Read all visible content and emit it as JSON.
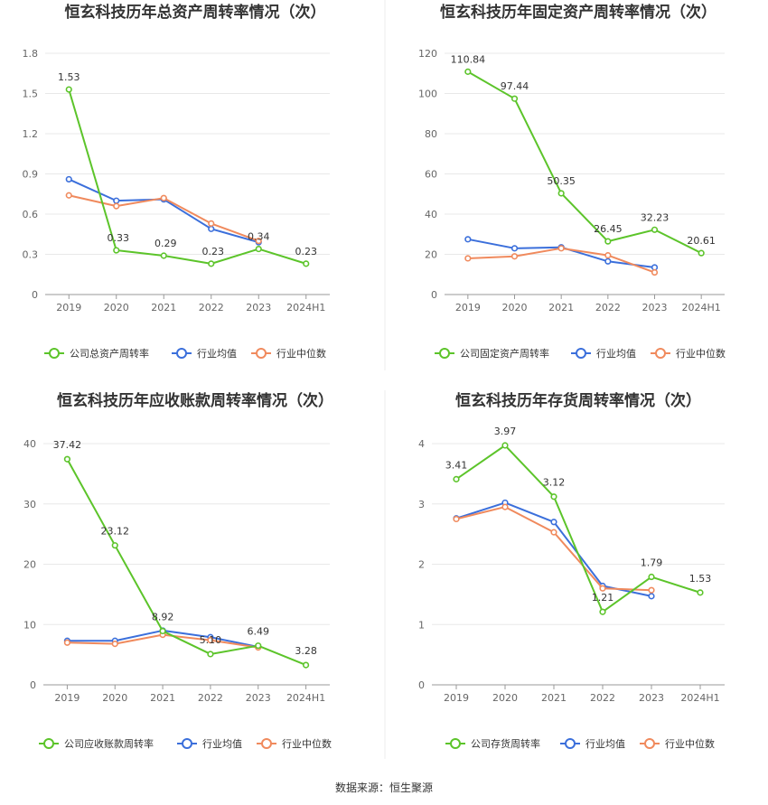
{
  "source_text": "数据来源：恒生聚源",
  "colors": {
    "company": "#5cc42a",
    "avg": "#3b6fdb",
    "median": "#f08a5d",
    "grid": "#e8e8e8",
    "axis": "#999999",
    "divider": "#eeeeee"
  },
  "chart_data": [
    {
      "type": "line",
      "title": "恒玄科技历年总资产周转率情况（次）",
      "categories": [
        "2019",
        "2020",
        "2021",
        "2022",
        "2023",
        "2024H1"
      ],
      "ylim": [
        0,
        1.8
      ],
      "yticks": [
        "0",
        "0.3",
        "0.6",
        "0.9",
        "1.2",
        "1.5",
        "1.8"
      ],
      "series": [
        {
          "name": "公司总资产周转率",
          "values": [
            1.53,
            0.33,
            0.29,
            0.23,
            0.34,
            0.23
          ],
          "labels": [
            "1.53",
            "0.33",
            "0.29",
            "0.23",
            "0.34",
            "0.23"
          ]
        },
        {
          "name": "行业均值",
          "values": [
            0.86,
            0.7,
            0.71,
            0.49,
            0.39,
            null
          ]
        },
        {
          "name": "行业中位数",
          "values": [
            0.74,
            0.66,
            0.72,
            0.53,
            0.4,
            null
          ]
        }
      ]
    },
    {
      "type": "line",
      "title": "恒玄科技历年固定资产周转率情况（次）",
      "categories": [
        "2019",
        "2020",
        "2021",
        "2022",
        "2023",
        "2024H1"
      ],
      "ylim": [
        0,
        120
      ],
      "yticks": [
        "0",
        "20",
        "40",
        "60",
        "80",
        "100",
        "120"
      ],
      "series": [
        {
          "name": "公司固定资产周转率",
          "values": [
            110.84,
            97.44,
            50.35,
            26.45,
            32.23,
            20.61
          ],
          "labels": [
            "110.84",
            "97.44",
            "50.35",
            "26.45",
            "32.23",
            "20.61"
          ]
        },
        {
          "name": "行业均值",
          "values": [
            27.5,
            23.0,
            23.5,
            16.5,
            13.5,
            null
          ]
        },
        {
          "name": "行业中位数",
          "values": [
            18.0,
            19.0,
            23.0,
            19.5,
            11.0,
            null
          ]
        }
      ]
    },
    {
      "type": "line",
      "title": "恒玄科技历年应收账款周转率情况（次）",
      "categories": [
        "2019",
        "2020",
        "2021",
        "2022",
        "2023",
        "2024H1"
      ],
      "ylim": [
        0,
        40
      ],
      "yticks": [
        "0",
        "10",
        "20",
        "30",
        "40"
      ],
      "series": [
        {
          "name": "公司应收账款周转率",
          "values": [
            37.42,
            23.12,
            8.92,
            5.1,
            6.49,
            3.28
          ],
          "labels": [
            "37.42",
            "23.12",
            "8.92",
            "5.10",
            "6.49",
            "3.28"
          ]
        },
        {
          "name": "行业均值",
          "values": [
            7.3,
            7.3,
            9.0,
            7.9,
            6.3,
            null
          ]
        },
        {
          "name": "行业中位数",
          "values": [
            7.0,
            6.8,
            8.3,
            7.4,
            6.2,
            null
          ]
        }
      ]
    },
    {
      "type": "line",
      "title": "恒玄科技历年存货周转率情况（次）",
      "categories": [
        "2019",
        "2020",
        "2021",
        "2022",
        "2023",
        "2024H1"
      ],
      "ylim": [
        0,
        4
      ],
      "yticks": [
        "0",
        "1",
        "2",
        "3",
        "4"
      ],
      "series": [
        {
          "name": "公司存货周转率",
          "values": [
            3.41,
            3.97,
            3.12,
            1.21,
            1.79,
            1.53
          ],
          "labels": [
            "3.41",
            "3.97",
            "3.12",
            "1.21",
            "1.79",
            "1.53"
          ]
        },
        {
          "name": "行业均值",
          "values": [
            2.76,
            3.02,
            2.7,
            1.64,
            1.47,
            null
          ]
        },
        {
          "name": "行业中位数",
          "values": [
            2.75,
            2.95,
            2.53,
            1.6,
            1.57,
            null
          ]
        }
      ]
    }
  ]
}
